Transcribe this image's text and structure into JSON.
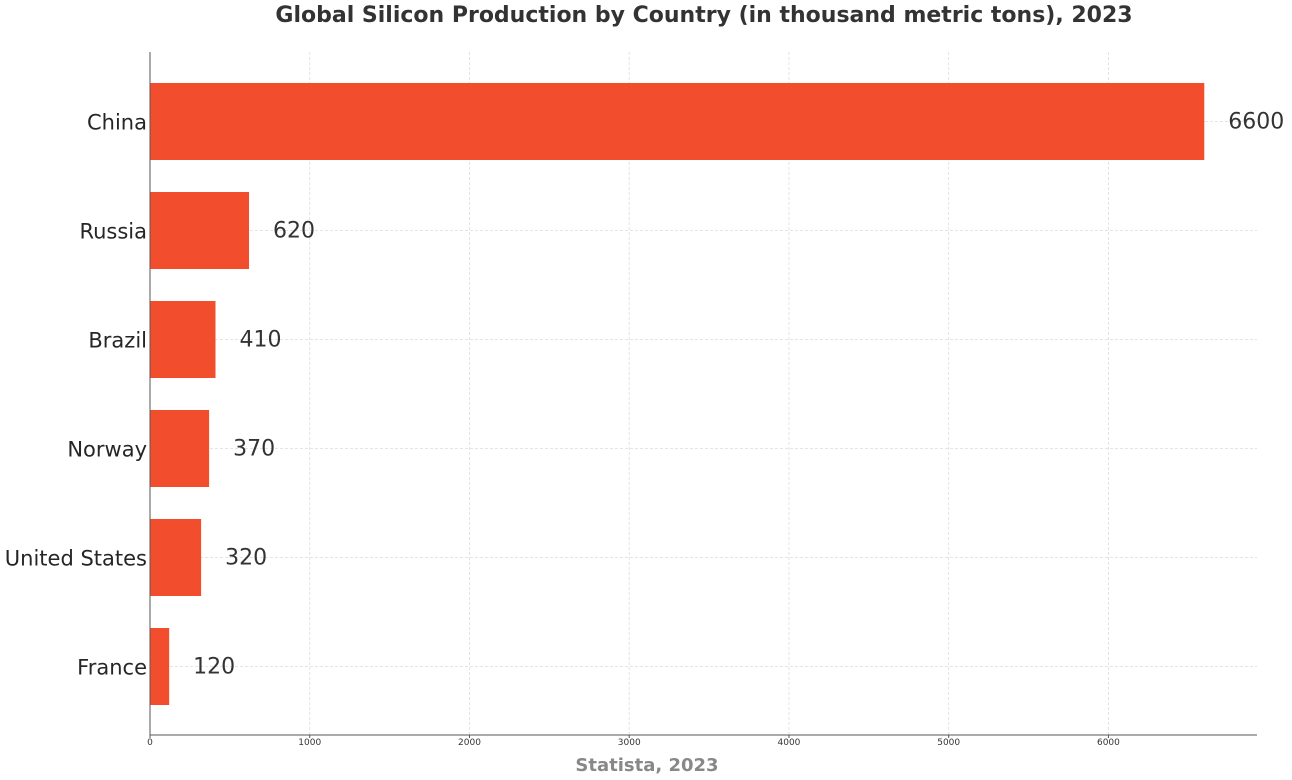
{
  "chart_data": {
    "type": "bar",
    "orientation": "horizontal",
    "title": "Global Silicon Production by Country (in thousand metric tons), 2023",
    "xlabel": "Statista, 2023",
    "ylabel": "",
    "categories": [
      "China",
      "Russia",
      "Brazil",
      "Norway",
      "United States",
      "France"
    ],
    "values": [
      6600,
      620,
      410,
      370,
      320,
      120
    ],
    "value_labels": [
      "6600",
      "620",
      "410",
      "370",
      "320",
      "120"
    ],
    "x_ticks": [
      "0",
      "1000",
      "2000",
      "3000",
      "4000",
      "5000",
      "6000"
    ],
    "xlim": [
      0,
      6930
    ],
    "grid": true,
    "bar_color": "#f24e2e"
  }
}
